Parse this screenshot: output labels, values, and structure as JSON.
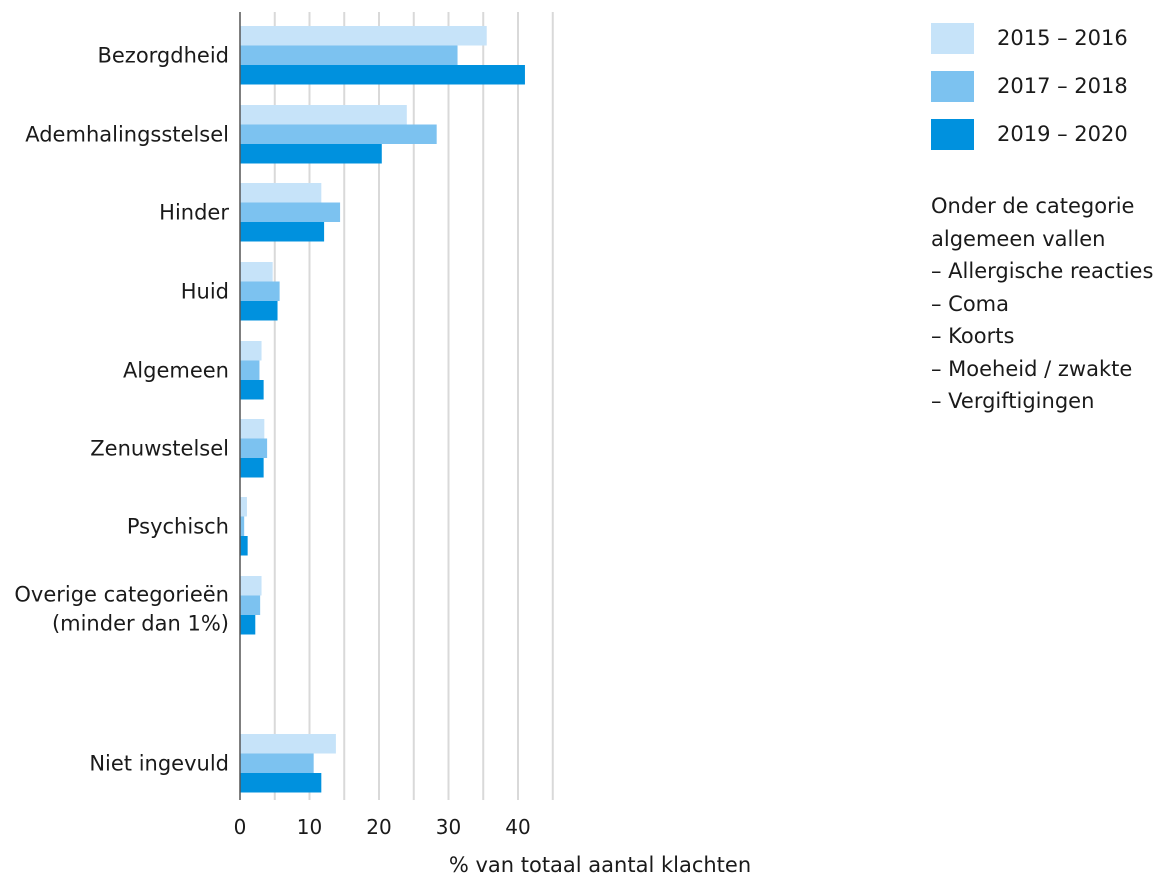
{
  "chart_data": {
    "type": "bar",
    "orientation": "horizontal",
    "categories": [
      "Bezorgdheid",
      "Ademhalingsstelsel",
      "Hinder",
      "Huid",
      "Algemeen",
      "Zenuwstelsel",
      "Psychisch",
      "Overige categorieën (minder dan 1%)",
      "Niet ingevuld"
    ],
    "series": [
      {
        "name": "2015 – 2016",
        "color": "#c6e3f9",
        "values": [
          35.5,
          24,
          11.7,
          4.7,
          3.1,
          3.5,
          1.0,
          3.1,
          13.8
        ]
      },
      {
        "name": "2017 – 2018",
        "color": "#7cc2f0",
        "values": [
          31.3,
          28.3,
          14.4,
          5.7,
          2.8,
          3.9,
          0.6,
          2.9,
          10.6
        ]
      },
      {
        "name": "2019 – 2020",
        "color": "#0091de",
        "values": [
          41.0,
          20.4,
          12.1,
          5.4,
          3.4,
          3.4,
          1.1,
          2.2,
          11.7
        ]
      }
    ],
    "xlabel": "% van totaal aantal klachten",
    "ylabel": "",
    "xlim": [
      0,
      45
    ],
    "xticks": [
      0,
      10,
      20,
      30,
      40
    ],
    "grid": true,
    "legend_position": "top-right"
  },
  "note": {
    "heading_line1": "Onder de categorie",
    "heading_line2": "algemeen vallen",
    "items": [
      "– Allergische reacties",
      "– Coma",
      "– Koorts",
      "– Moeheid / zwakte",
      "– Vergiftigingen"
    ]
  }
}
